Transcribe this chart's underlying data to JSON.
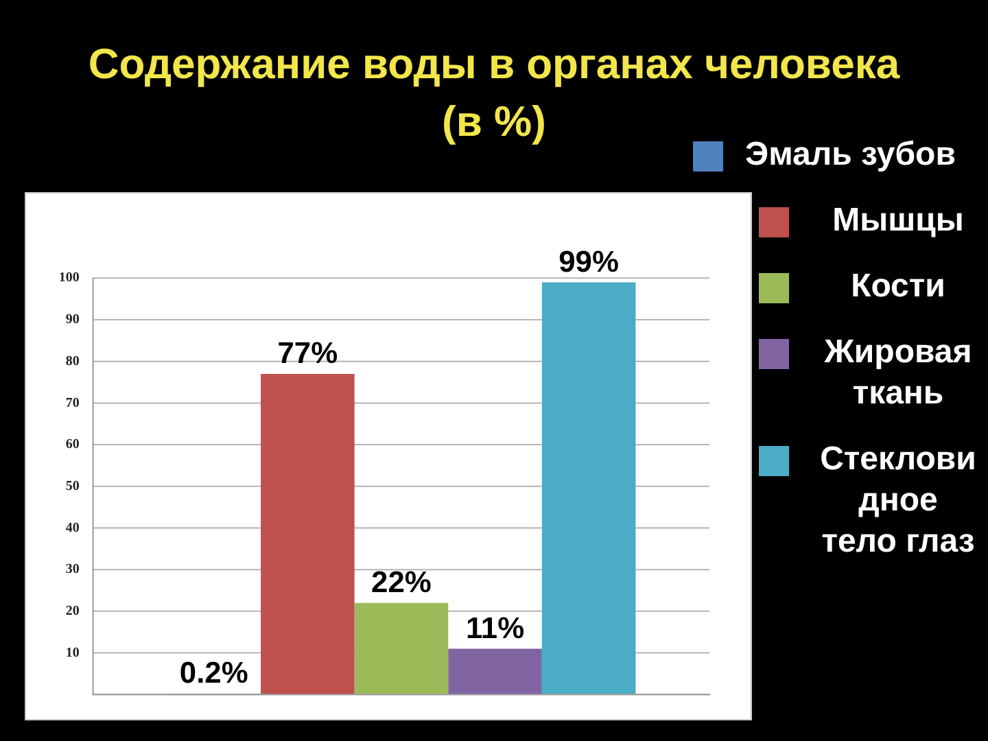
{
  "chart_data": {
    "type": "bar",
    "title": "Содержание воды в органах человека (в %)",
    "categories": [
      null
    ],
    "series": [
      {
        "name": "Эмаль зубов",
        "color": "#4f81bd",
        "values": [
          0.2
        ],
        "value_labels": [
          "0.2%"
        ]
      },
      {
        "name": "Мышцы",
        "color": "#c0504d",
        "values": [
          77
        ],
        "value_labels": [
          "77%"
        ]
      },
      {
        "name": "Кости",
        "color": "#9bbb59",
        "values": [
          22
        ],
        "value_labels": [
          "22%"
        ]
      },
      {
        "name": "Жировая ткань",
        "color": "#8064a2",
        "values": [
          11
        ],
        "value_labels": [
          "11%"
        ]
      },
      {
        "name": "Стекловидное тело глаз",
        "color": "#4bacc6",
        "values": [
          99
        ],
        "value_labels": [
          "99%"
        ]
      }
    ],
    "ylim": [
      0,
      100
    ],
    "yticks": [
      {
        "value": 0,
        "label": null
      },
      10,
      20,
      30,
      40,
      50,
      60,
      70,
      80,
      90,
      100
    ],
    "grid": "y",
    "legend": "right",
    "tick_labels": "y"
  }
}
